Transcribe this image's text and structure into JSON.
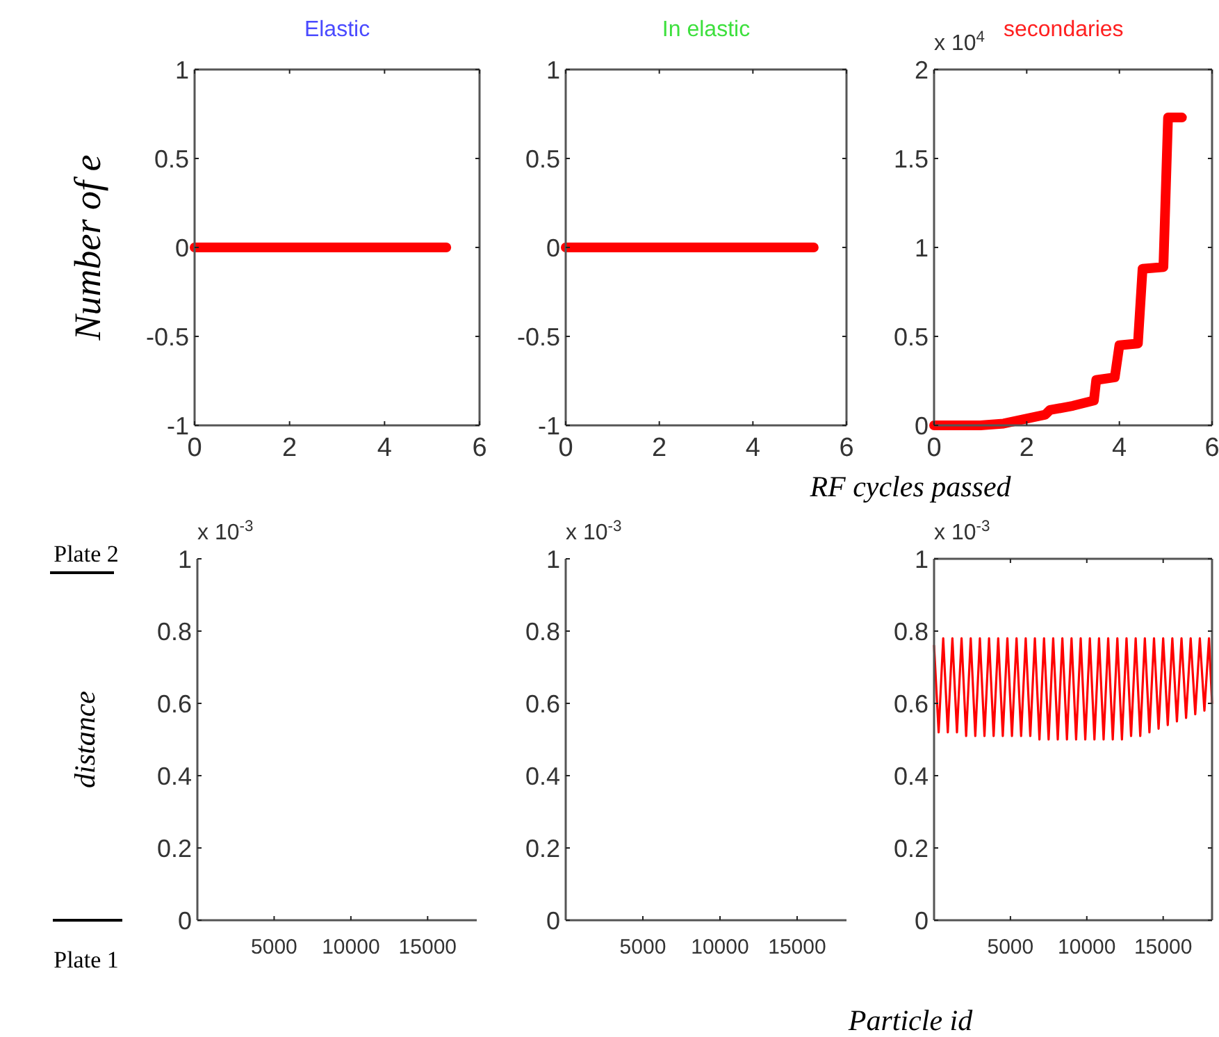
{
  "chart_data": [
    {
      "type": "line",
      "title": "Elastic",
      "ylabel": "Number of e",
      "xlim": [
        0,
        6
      ],
      "xticks": [
        0,
        2,
        4,
        6
      ],
      "ylim": [
        -1,
        1
      ],
      "yticks": [
        -1,
        -0.5,
        0,
        0.5,
        1
      ],
      "series": [
        {
          "color": "#ff0000",
          "x": [
            0,
            1,
            2,
            3,
            4,
            5,
            5.3
          ],
          "values": [
            0,
            0,
            0,
            0,
            0,
            0,
            0
          ]
        }
      ]
    },
    {
      "type": "line",
      "title": "In elastic",
      "xlim": [
        0,
        6
      ],
      "xticks": [
        0,
        2,
        4,
        6
      ],
      "ylim": [
        -1,
        1
      ],
      "yticks": [
        -1,
        -0.5,
        0,
        0.5,
        1
      ],
      "series": [
        {
          "color": "#ff0000",
          "x": [
            0,
            1,
            2,
            3,
            4,
            5,
            5.3
          ],
          "values": [
            0,
            0,
            0,
            0,
            0,
            0,
            0
          ]
        }
      ]
    },
    {
      "type": "line",
      "title": "secondaries",
      "xlabel": "RF cycles passed",
      "annotations": [
        "x 10$^{4}$"
      ],
      "xlim": [
        0,
        6
      ],
      "xticks": [
        0,
        2,
        4,
        6
      ],
      "ylim": [
        0,
        2
      ],
      "yticks": [
        0,
        0.5,
        1,
        1.5,
        2
      ],
      "series": [
        {
          "color": "#ff0000",
          "x": [
            0,
            1,
            1.5,
            2.4,
            2.5,
            3,
            3.45,
            3.5,
            3.9,
            4,
            4.4,
            4.5,
            4.95,
            5.05,
            5.35
          ],
          "values": [
            0,
            0,
            0.01,
            0.06,
            0.086,
            0.11,
            0.14,
            0.255,
            0.27,
            0.45,
            0.46,
            0.88,
            0.89,
            1.73,
            1.73
          ]
        }
      ]
    },
    {
      "type": "line",
      "ylabel": "distance",
      "annotations": [
        "x 10$^{-3}$",
        "Plate 2",
        "Plate 1"
      ],
      "xlim": [
        0,
        18200
      ],
      "xticks": [
        5000,
        10000,
        15000
      ],
      "ylim": [
        0,
        1
      ],
      "yticks": [
        0,
        0.2,
        0.4,
        0.6,
        0.8,
        1
      ]
    },
    {
      "type": "line",
      "annotations": [
        "x 10$^{-3}$"
      ],
      "xlim": [
        0,
        18200
      ],
      "xticks": [
        5000,
        10000,
        15000
      ],
      "ylim": [
        0,
        1
      ],
      "yticks": [
        0,
        0.2,
        0.4,
        0.6,
        0.8,
        1
      ]
    },
    {
      "type": "line",
      "xlabel": "Particle id",
      "annotations": [
        "x 10$^{-3}$"
      ],
      "xlim": [
        0,
        18200
      ],
      "xticks": [
        5000,
        10000,
        15000
      ],
      "ylim": [
        0,
        1
      ],
      "yticks": [
        0,
        0.2,
        0.4,
        0.6,
        0.8,
        1
      ],
      "series": [
        {
          "color": "#ff0000",
          "x": [
            0,
            300,
            600,
            900,
            1200,
            1500,
            1800,
            2100,
            2400,
            2700,
            3000,
            3300,
            3600,
            3900,
            4200,
            4500,
            4800,
            5100,
            5400,
            5700,
            6000,
            6300,
            6600,
            6900,
            7200,
            7500,
            7800,
            8100,
            8400,
            8700,
            9000,
            9300,
            9600,
            9900,
            10200,
            10500,
            10800,
            11100,
            11400,
            11700,
            12000,
            12300,
            12600,
            12900,
            13200,
            13500,
            13800,
            14100,
            14400,
            14700,
            15000,
            15300,
            15600,
            15900,
            16200,
            16500,
            16800,
            17100,
            17400,
            17700,
            18000,
            18200
          ],
          "values": [
            0.76,
            0.52,
            0.78,
            0.52,
            0.78,
            0.52,
            0.78,
            0.51,
            0.78,
            0.51,
            0.78,
            0.51,
            0.78,
            0.51,
            0.78,
            0.51,
            0.78,
            0.51,
            0.78,
            0.51,
            0.78,
            0.51,
            0.78,
            0.5,
            0.78,
            0.5,
            0.78,
            0.5,
            0.78,
            0.5,
            0.78,
            0.5,
            0.78,
            0.5,
            0.78,
            0.5,
            0.78,
            0.5,
            0.78,
            0.5,
            0.78,
            0.5,
            0.78,
            0.51,
            0.78,
            0.51,
            0.78,
            0.52,
            0.78,
            0.53,
            0.78,
            0.54,
            0.78,
            0.55,
            0.78,
            0.56,
            0.78,
            0.57,
            0.78,
            0.58,
            0.78,
            0.6
          ]
        }
      ]
    }
  ]
}
